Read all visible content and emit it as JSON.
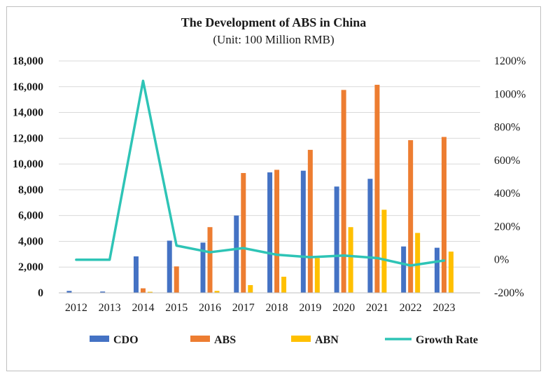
{
  "chart_data": {
    "type": "bar",
    "title": "The Development of ABS in China",
    "subtitle": "(Unit: 100 Million RMB)",
    "categories": [
      "2012",
      "2013",
      "2014",
      "2015",
      "2016",
      "2017",
      "2018",
      "2019",
      "2020",
      "2021",
      "2022",
      "2023"
    ],
    "series": [
      {
        "name": "CDO",
        "kind": "bar",
        "axis": "left",
        "color": "#4472C4",
        "values": [
          150,
          100,
          2830,
          4050,
          3900,
          6000,
          9350,
          9480,
          8250,
          8850,
          3600,
          3500
        ]
      },
      {
        "name": "ABS",
        "kind": "bar",
        "axis": "left",
        "color": "#ED7D31",
        "values": [
          0,
          0,
          350,
          2050,
          5100,
          9300,
          9550,
          11100,
          15750,
          16150,
          11850,
          12100
        ]
      },
      {
        "name": "ABN",
        "kind": "bar",
        "axis": "left",
        "color": "#FFC000",
        "values": [
          0,
          0,
          80,
          0,
          150,
          600,
          1250,
          2700,
          5100,
          6450,
          4650,
          3200
        ]
      },
      {
        "name": "Growth Rate",
        "kind": "line",
        "axis": "right",
        "color": "#2EC4B6",
        "values": [
          0,
          0,
          1080,
          85,
          45,
          70,
          30,
          15,
          25,
          10,
          -35,
          -5
        ]
      }
    ],
    "y_left": {
      "min": 0,
      "max": 18000,
      "step": 2000,
      "tick_labels": [
        "0",
        "2,000",
        "4,000",
        "6,000",
        "8,000",
        "10,000",
        "12,000",
        "14,000",
        "16,000",
        "18,000"
      ]
    },
    "y_right": {
      "min": -200,
      "max": 1200,
      "step": 200,
      "unit": "%",
      "tick_labels": [
        "-200%",
        "0%",
        "200%",
        "400%",
        "600%",
        "800%",
        "1000%",
        "1200%"
      ]
    },
    "grid": true,
    "legend": {
      "position": "bottom",
      "entries": [
        "CDO",
        "ABS",
        "ABN",
        "Growth Rate"
      ]
    }
  }
}
